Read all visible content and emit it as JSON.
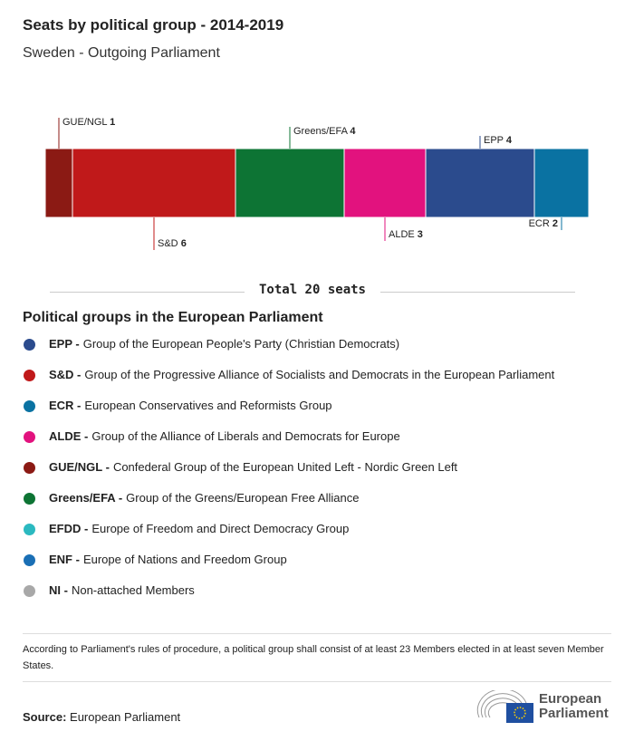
{
  "title": "Seats by political group - 2014-2019",
  "subtitle": "Sweden - Outgoing Parliament",
  "chart_data": {
    "type": "bar",
    "orientation": "horizontal-stacked",
    "categories": [
      "GUE/NGL",
      "S&D",
      "Greens/EFA",
      "ALDE",
      "EPP",
      "ECR"
    ],
    "values": [
      1,
      6,
      4,
      3,
      4,
      2
    ],
    "colors": [
      "#8b1a14",
      "#c0191a",
      "#0d7434",
      "#e2127e",
      "#2b4b8d",
      "#0a72a2"
    ],
    "total": 20
  },
  "total_label": "Total 20 seats",
  "legend_title": "Political groups in the European Parliament",
  "legend": [
    {
      "abbr": "EPP -",
      "name": "Group of the European People's Party (Christian Democrats)",
      "color": "#2b4b8d"
    },
    {
      "abbr": "S&D -",
      "name": "Group of the Progressive Alliance of Socialists and Democrats in the European Parliament",
      "color": "#c0191a"
    },
    {
      "abbr": "ECR -",
      "name": "European Conservatives and Reformists Group",
      "color": "#0a72a2"
    },
    {
      "abbr": "ALDE -",
      "name": "Group of the Alliance of Liberals and Democrats for Europe",
      "color": "#e2127e"
    },
    {
      "abbr": "GUE/NGL -",
      "name": "Confederal Group of the European United Left - Nordic Green Left",
      "color": "#8b1a14"
    },
    {
      "abbr": "Greens/EFA -",
      "name": "Group of the Greens/European Free Alliance",
      "color": "#0d7434"
    },
    {
      "abbr": "EFDD -",
      "name": "Europe of Freedom and Direct Democracy Group",
      "color": "#2bb9c0"
    },
    {
      "abbr": "ENF -",
      "name": "Europe of Nations and Freedom Group",
      "color": "#1a6fb5"
    },
    {
      "abbr": "NI -",
      "name": "Non-attached Members",
      "color": "#a8a8a8"
    }
  ],
  "note": "According to Parliament's rules of procedure, a political group shall consist of at least 23 Members elected in at least seven Member States.",
  "source_label": "Source:",
  "source_value": "European Parliament",
  "logo_text": [
    "European",
    "Parliament"
  ]
}
